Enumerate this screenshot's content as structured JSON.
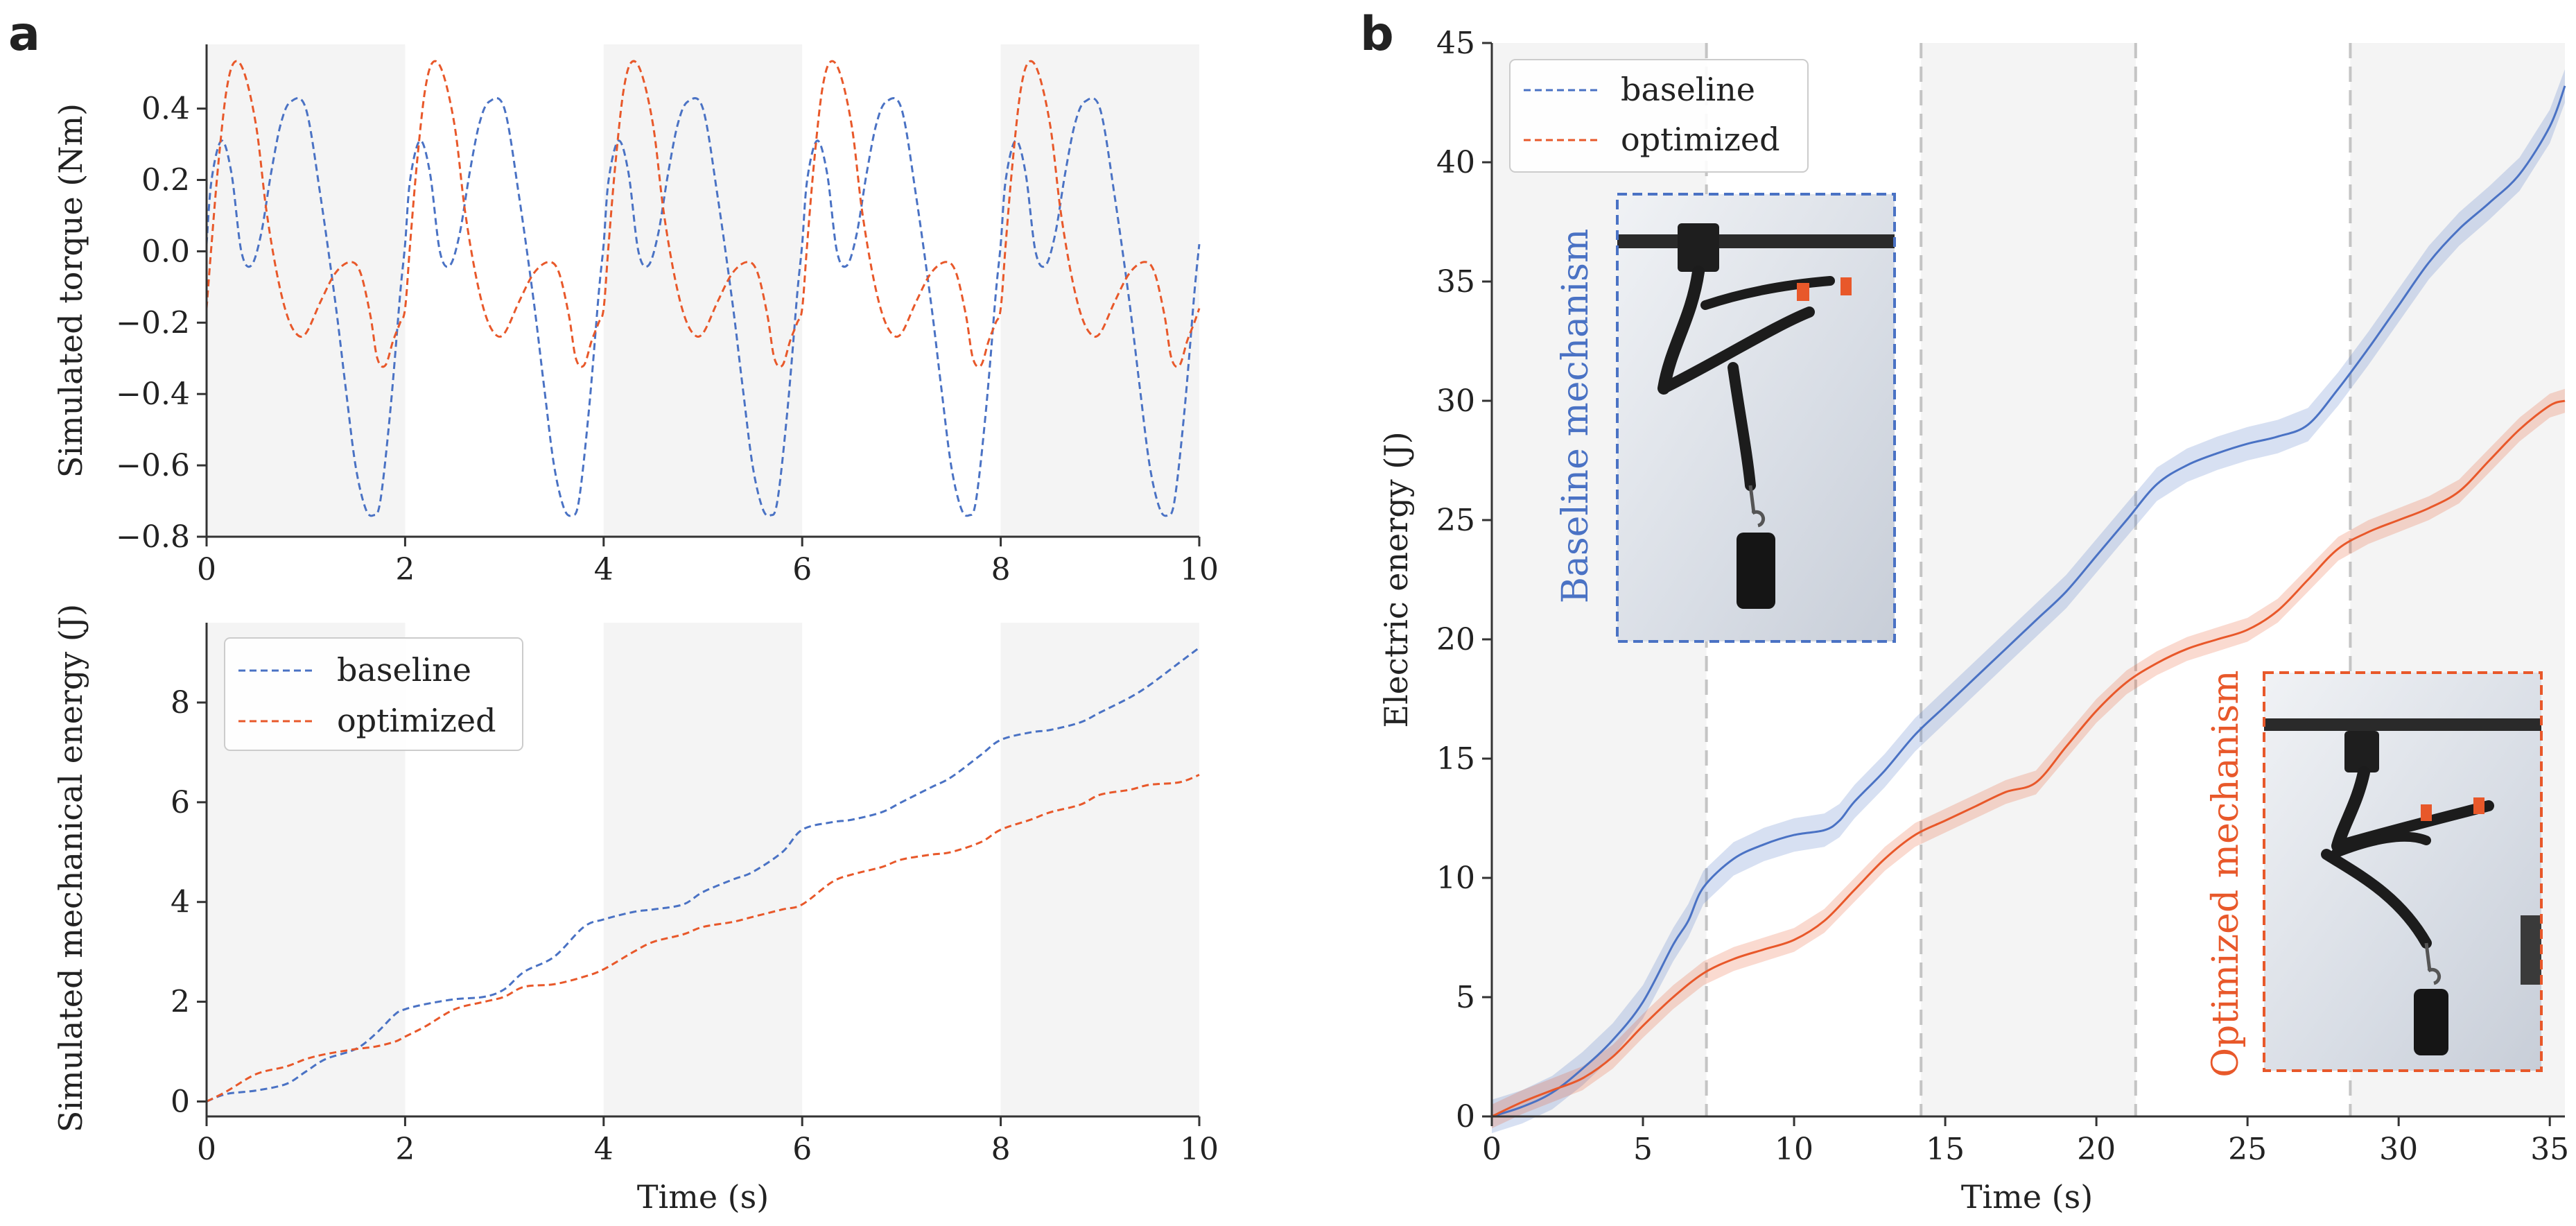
{
  "colors": {
    "baseline": "#4a72c4",
    "optimized": "#e8582a",
    "axis": "#333333",
    "band": "#f4f4f4",
    "vline": "#c4c4c4",
    "photo_bg": "#dfe3ea"
  },
  "chart_data": [
    {
      "id": "a_top",
      "panel_letter": "a",
      "type": "line",
      "title": "",
      "xlabel": "",
      "ylabel": "Simulated torque (Nm)",
      "xlim": [
        0,
        10
      ],
      "ylim": [
        -0.8,
        0.58
      ],
      "xticks": [
        0,
        2,
        4,
        6,
        8,
        10
      ],
      "xtick_labels": [
        "0",
        "2",
        "4",
        "6",
        "8",
        "10"
      ],
      "yticks": [
        -0.8,
        -0.6,
        -0.4,
        -0.2,
        0.0,
        0.2,
        0.4
      ],
      "ytick_labels": [
        "−0.8",
        "−0.6",
        "−0.4",
        "−0.2",
        "0.0",
        "0.2",
        "0.4"
      ],
      "shaded_x": [
        [
          0,
          2
        ],
        [
          4,
          6
        ],
        [
          8,
          10
        ]
      ],
      "period": 2.0,
      "series": [
        {
          "name": "baseline",
          "period_x": [
            0,
            0.05,
            0.15,
            0.25,
            0.35,
            0.45,
            0.55,
            0.65,
            0.75,
            0.85,
            1.0,
            1.15,
            1.3,
            1.4,
            1.5,
            1.6,
            1.68,
            1.75,
            1.85,
            1.95,
            2.0
          ],
          "period_y": [
            0.02,
            0.2,
            0.31,
            0.22,
            0.0,
            -0.04,
            0.05,
            0.22,
            0.36,
            0.42,
            0.4,
            0.15,
            -0.15,
            -0.38,
            -0.6,
            -0.72,
            -0.74,
            -0.7,
            -0.45,
            -0.12,
            0.02
          ]
        },
        {
          "name": "optimized",
          "period_x": [
            0,
            0.05,
            0.12,
            0.2,
            0.28,
            0.38,
            0.5,
            0.6,
            0.7,
            0.8,
            0.9,
            1.0,
            1.15,
            1.3,
            1.45,
            1.55,
            1.65,
            1.72,
            1.8,
            1.88,
            1.95,
            2.0
          ],
          "period_y": [
            -0.16,
            0.02,
            0.25,
            0.45,
            0.53,
            0.5,
            0.35,
            0.12,
            -0.05,
            -0.17,
            -0.23,
            -0.23,
            -0.14,
            -0.06,
            -0.03,
            -0.06,
            -0.18,
            -0.3,
            -0.32,
            -0.25,
            -0.2,
            -0.16
          ]
        }
      ]
    },
    {
      "id": "a_bottom",
      "type": "line",
      "title": "",
      "xlabel": "Time (s)",
      "ylabel": "Simulated mechanical energy (J)",
      "xlim": [
        0,
        10
      ],
      "ylim": [
        -0.3,
        9.6
      ],
      "xticks": [
        0,
        2,
        4,
        6,
        8,
        10
      ],
      "xtick_labels": [
        "0",
        "2",
        "4",
        "6",
        "8",
        "10"
      ],
      "yticks": [
        0,
        2,
        4,
        6,
        8
      ],
      "ytick_labels": [
        "0",
        "2",
        "4",
        "6",
        "8"
      ],
      "shaded_x": [
        [
          0,
          2
        ],
        [
          4,
          6
        ],
        [
          8,
          10
        ]
      ],
      "legend_position": "upper-left",
      "series": [
        {
          "name": "baseline",
          "x": [
            0,
            0.2,
            0.5,
            0.8,
            1.0,
            1.2,
            1.5,
            1.7,
            1.9,
            2.0,
            2.2,
            2.5,
            2.8,
            3.0,
            3.2,
            3.5,
            3.8,
            4.0,
            4.3,
            4.5,
            4.8,
            5.0,
            5.3,
            5.5,
            5.8,
            6.0,
            6.3,
            6.5,
            6.8,
            7.0,
            7.3,
            7.5,
            7.8,
            8.0,
            8.3,
            8.5,
            8.8,
            9.0,
            9.3,
            9.5,
            9.8,
            10.0
          ],
          "y": [
            0,
            0.15,
            0.22,
            0.35,
            0.6,
            0.85,
            1.05,
            1.35,
            1.75,
            1.85,
            1.95,
            2.05,
            2.1,
            2.25,
            2.6,
            2.9,
            3.5,
            3.65,
            3.8,
            3.85,
            3.95,
            4.2,
            4.45,
            4.6,
            5.0,
            5.45,
            5.6,
            5.65,
            5.8,
            6.0,
            6.3,
            6.5,
            6.95,
            7.25,
            7.4,
            7.45,
            7.6,
            7.8,
            8.1,
            8.35,
            8.8,
            9.1
          ]
        },
        {
          "name": "optimized",
          "x": [
            0,
            0.2,
            0.5,
            0.8,
            1.0,
            1.2,
            1.5,
            1.7,
            1.9,
            2.0,
            2.2,
            2.5,
            2.8,
            3.0,
            3.2,
            3.5,
            3.8,
            4.0,
            4.3,
            4.5,
            4.8,
            5.0,
            5.3,
            5.5,
            5.8,
            6.0,
            6.3,
            6.5,
            6.8,
            7.0,
            7.3,
            7.5,
            7.8,
            8.0,
            8.3,
            8.5,
            8.8,
            9.0,
            9.3,
            9.5,
            9.8,
            10.0
          ],
          "y": [
            0,
            0.2,
            0.55,
            0.7,
            0.85,
            0.95,
            1.05,
            1.1,
            1.2,
            1.3,
            1.5,
            1.85,
            2.0,
            2.1,
            2.3,
            2.35,
            2.5,
            2.65,
            3.0,
            3.2,
            3.35,
            3.5,
            3.6,
            3.7,
            3.85,
            3.95,
            4.4,
            4.55,
            4.7,
            4.85,
            4.95,
            5.0,
            5.2,
            5.45,
            5.65,
            5.8,
            5.95,
            6.15,
            6.25,
            6.35,
            6.4,
            6.55
          ]
        }
      ],
      "legend": [
        "baseline",
        "optimized"
      ]
    },
    {
      "id": "b",
      "panel_letter": "b",
      "type": "line",
      "title": "",
      "xlabel": "Time (s)",
      "ylabel": "Electric energy (J)",
      "xlim": [
        0,
        35.5
      ],
      "ylim": [
        0,
        45
      ],
      "xticks": [
        0,
        5,
        10,
        15,
        20,
        25,
        30,
        35
      ],
      "xtick_labels": [
        "0",
        "5",
        "10",
        "15",
        "20",
        "25",
        "30",
        "35"
      ],
      "yticks": [
        0,
        5,
        10,
        15,
        20,
        25,
        30,
        35,
        40,
        45
      ],
      "ytick_labels": [
        "0",
        "5",
        "10",
        "15",
        "20",
        "25",
        "30",
        "35",
        "40",
        "45"
      ],
      "shaded_x": [
        [
          0,
          7.1
        ],
        [
          14.2,
          21.3
        ],
        [
          28.4,
          35.5
        ]
      ],
      "vlines": [
        7.1,
        14.2,
        21.3,
        28.4
      ],
      "legend_position": "upper-left",
      "legend": [
        "baseline",
        "optimized"
      ],
      "series": [
        {
          "name": "baseline",
          "x": [
            0,
            1,
            2,
            3,
            4,
            5,
            6,
            6.5,
            7,
            8,
            9,
            10,
            11,
            11.5,
            12,
            13,
            14,
            15,
            16,
            17,
            18,
            19,
            20,
            21,
            22,
            23,
            24,
            25,
            26,
            27,
            28,
            29,
            30,
            31,
            32,
            33,
            34,
            35,
            35.5
          ],
          "y": [
            0,
            0.4,
            1.0,
            2.0,
            3.2,
            4.8,
            7.2,
            8.2,
            9.6,
            10.8,
            11.4,
            11.8,
            12.0,
            12.4,
            13.2,
            14.5,
            16.0,
            17.2,
            18.4,
            19.6,
            20.8,
            22.0,
            23.5,
            25.0,
            26.5,
            27.3,
            27.8,
            28.2,
            28.5,
            29.0,
            30.5,
            32.2,
            34.0,
            35.8,
            37.2,
            38.3,
            39.5,
            41.5,
            43.2
          ],
          "band": 0.7
        },
        {
          "name": "optimized",
          "x": [
            0,
            1,
            2,
            3,
            4,
            5,
            6,
            7,
            8,
            9,
            10,
            11,
            12,
            13,
            14,
            15,
            16,
            17,
            18,
            19,
            20,
            21,
            22,
            23,
            24,
            25,
            26,
            27,
            28,
            29,
            30,
            31,
            32,
            33,
            34,
            35,
            35.5
          ],
          "y": [
            0,
            0.6,
            1.1,
            1.6,
            2.5,
            3.8,
            5.0,
            6.0,
            6.6,
            7.0,
            7.4,
            8.2,
            9.5,
            10.8,
            11.8,
            12.4,
            13.0,
            13.6,
            14.0,
            15.5,
            17.0,
            18.2,
            19.0,
            19.6,
            20.0,
            20.4,
            21.2,
            22.5,
            23.8,
            24.5,
            25.0,
            25.5,
            26.2,
            27.5,
            28.8,
            29.8,
            30.0
          ],
          "band": 0.5
        }
      ],
      "insets": [
        {
          "name": "baseline",
          "caption": "Baseline mechanism"
        },
        {
          "name": "optimized",
          "caption": "Optimized mechanism"
        }
      ]
    }
  ]
}
